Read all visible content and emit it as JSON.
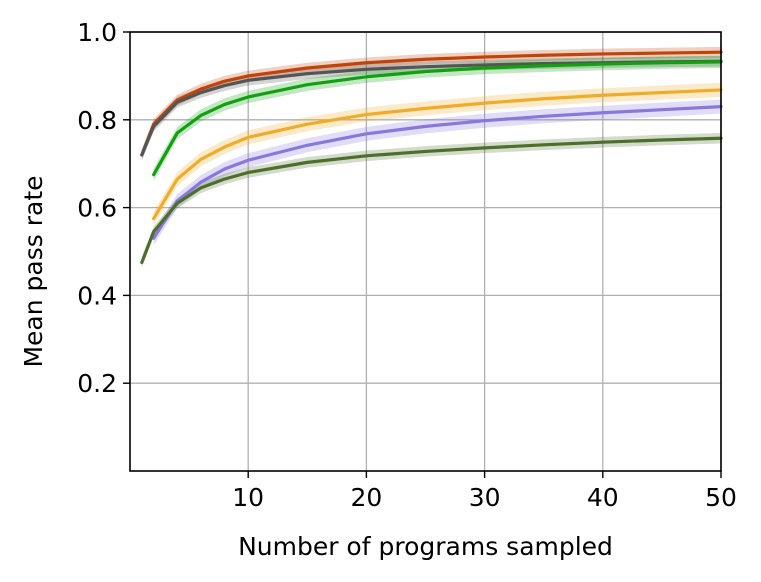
{
  "chart_data": {
    "type": "line",
    "title": "",
    "xlabel": "Number of programs sampled",
    "ylabel": "Mean pass rate",
    "xlim": [
      0,
      50
    ],
    "ylim": [
      0,
      1.0
    ],
    "xticks": [
      10,
      20,
      30,
      40,
      50
    ],
    "yticks": [
      0.2,
      0.4,
      0.6,
      0.8,
      1.0
    ],
    "xtick_labels": [
      "10",
      "20",
      "30",
      "40",
      "50"
    ],
    "ytick_labels": [
      "0.2",
      "0.4",
      "0.6",
      "0.8",
      "1.0"
    ],
    "grid": true,
    "legend": "none",
    "series": [
      {
        "name": "orange-red",
        "color": "#c0440a",
        "x": [
          1,
          2,
          4,
          6,
          8,
          10,
          15,
          20,
          25,
          30,
          35,
          40,
          45,
          50
        ],
        "values": [
          0.72,
          0.79,
          0.845,
          0.87,
          0.888,
          0.9,
          0.918,
          0.93,
          0.938,
          0.943,
          0.947,
          0.95,
          0.952,
          0.954
        ],
        "band": 0.012
      },
      {
        "name": "dark-gray",
        "color": "#555555",
        "x": [
          1,
          2,
          4,
          6,
          8,
          10,
          15,
          20,
          25,
          30,
          35,
          40,
          45,
          50
        ],
        "values": [
          0.72,
          0.785,
          0.84,
          0.862,
          0.878,
          0.89,
          0.905,
          0.915,
          0.921,
          0.925,
          0.928,
          0.93,
          0.932,
          0.933
        ],
        "band": 0.012
      },
      {
        "name": "green",
        "color": "#12a010",
        "x": [
          2,
          4,
          6,
          8,
          10,
          15,
          20,
          25,
          30,
          35,
          40,
          45,
          50
        ],
        "values": [
          0.675,
          0.77,
          0.81,
          0.835,
          0.852,
          0.88,
          0.898,
          0.91,
          0.918,
          0.923,
          0.927,
          0.93,
          0.932
        ],
        "band": 0.014
      },
      {
        "name": "gold",
        "color": "#f0ac28",
        "x": [
          2,
          4,
          6,
          8,
          10,
          15,
          20,
          25,
          30,
          35,
          40,
          45,
          50
        ],
        "values": [
          0.575,
          0.665,
          0.71,
          0.738,
          0.76,
          0.79,
          0.812,
          0.826,
          0.838,
          0.848,
          0.856,
          0.862,
          0.868
        ],
        "band": 0.016
      },
      {
        "name": "purple",
        "color": "#8878dc",
        "x": [
          2,
          4,
          6,
          8,
          10,
          15,
          20,
          25,
          30,
          35,
          40,
          45,
          50
        ],
        "values": [
          0.53,
          0.615,
          0.658,
          0.688,
          0.708,
          0.742,
          0.768,
          0.785,
          0.798,
          0.808,
          0.816,
          0.823,
          0.83
        ],
        "band": 0.016
      },
      {
        "name": "olive",
        "color": "#4e6e2c",
        "x": [
          1,
          2,
          4,
          6,
          8,
          10,
          15,
          20,
          25,
          30,
          35,
          40,
          45,
          50
        ],
        "values": [
          0.475,
          0.545,
          0.61,
          0.645,
          0.665,
          0.68,
          0.703,
          0.718,
          0.728,
          0.736,
          0.743,
          0.749,
          0.754,
          0.758
        ],
        "band": 0.012
      }
    ]
  }
}
